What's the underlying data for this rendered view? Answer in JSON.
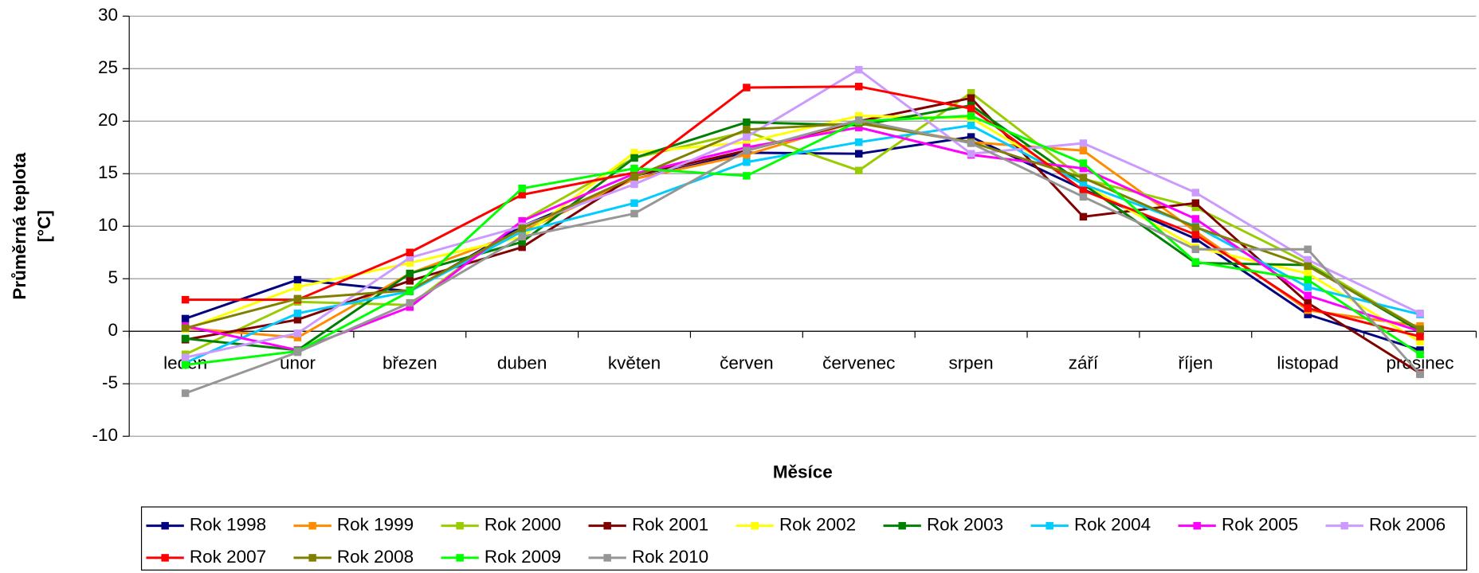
{
  "chart_data": {
    "type": "line",
    "y_label": [
      "Průměrná teplota",
      "[°C]"
    ],
    "x_label": "Měsíce",
    "categories": [
      "leden",
      "únor",
      "březen",
      "duben",
      "květen",
      "červen",
      "červenec",
      "srpen",
      "září",
      "říjen",
      "listopad",
      "prosinec"
    ],
    "ylim": [
      -10,
      30
    ],
    "yticks": [
      -10,
      -5,
      0,
      5,
      10,
      15,
      20,
      25,
      30
    ],
    "grid": true,
    "legend": "bottom",
    "series": [
      {
        "name": "Rok 1998",
        "color": "#000080",
        "values": [
          1.2,
          4.9,
          3.8,
          10.0,
          14.5,
          17.0,
          16.9,
          18.5,
          13.5,
          8.8,
          1.6,
          -1.8
        ]
      },
      {
        "name": "Rok 1999",
        "color": "#ff8c00",
        "values": [
          0.3,
          -0.6,
          5.5,
          9.5,
          14.5,
          16.8,
          20.0,
          18.0,
          17.2,
          9.5,
          2.0,
          0.5
        ]
      },
      {
        "name": "Rok 2000",
        "color": "#99cc00",
        "values": [
          -2.2,
          2.8,
          2.5,
          10.5,
          16.5,
          19.0,
          15.3,
          22.7,
          14.5,
          11.8,
          6.5,
          0.2
        ]
      },
      {
        "name": "Rok 2001",
        "color": "#800000",
        "values": [
          -0.8,
          1.1,
          4.8,
          8.0,
          14.8,
          17.2,
          20.0,
          22.2,
          10.9,
          12.2,
          2.7,
          -4.0
        ]
      },
      {
        "name": "Rok 2002",
        "color": "#ffff00",
        "values": [
          0.2,
          4.2,
          6.5,
          9.0,
          17.0,
          18.0,
          20.5,
          20.3,
          14.0,
          8.0,
          5.5,
          -1.0
        ]
      },
      {
        "name": "Rok 2003",
        "color": "#008000",
        "values": [
          -0.7,
          -1.8,
          5.5,
          8.5,
          16.5,
          19.9,
          19.6,
          21.5,
          14.0,
          6.5,
          6.3,
          0.0
        ]
      },
      {
        "name": "Rok 2004",
        "color": "#00ccff",
        "values": [
          -3.0,
          1.7,
          3.8,
          9.5,
          12.2,
          16.1,
          18.0,
          19.6,
          14.0,
          10.0,
          4.2,
          1.6
        ]
      },
      {
        "name": "Rok 2005",
        "color": "#ff00ff",
        "values": [
          0.5,
          -1.8,
          2.3,
          10.5,
          15.0,
          17.5,
          19.4,
          16.8,
          15.5,
          10.7,
          3.4,
          0.0
        ]
      },
      {
        "name": "Rok 2006",
        "color": "#cc99ff",
        "values": [
          -2.5,
          -0.2,
          7.0,
          10.0,
          14.0,
          18.5,
          24.9,
          16.9,
          17.9,
          13.2,
          6.8,
          1.7
        ]
      },
      {
        "name": "Rok 2007",
        "color": "#ff0000",
        "values": [
          3.0,
          3.0,
          7.5,
          13.0,
          15.1,
          23.2,
          23.3,
          21.2,
          13.4,
          9.2,
          2.2,
          -0.5
        ]
      },
      {
        "name": "Rok 2008",
        "color": "#808000",
        "values": [
          0.3,
          3.1,
          3.9,
          9.8,
          14.7,
          19.2,
          19.8,
          18.0,
          14.6,
          9.9,
          6.2,
          0.2
        ]
      },
      {
        "name": "Rok 2009",
        "color": "#00ff00",
        "values": [
          -3.2,
          -1.9,
          3.8,
          13.6,
          15.5,
          14.8,
          20.0,
          20.5,
          16.0,
          6.6,
          4.9,
          -2.2
        ]
      },
      {
        "name": "Rok 2010",
        "color": "#969696",
        "values": [
          -5.9,
          -2.0,
          2.7,
          9.0,
          11.2,
          17.2,
          20.1,
          17.9,
          12.8,
          7.8,
          7.8,
          -4.1
        ]
      }
    ]
  }
}
